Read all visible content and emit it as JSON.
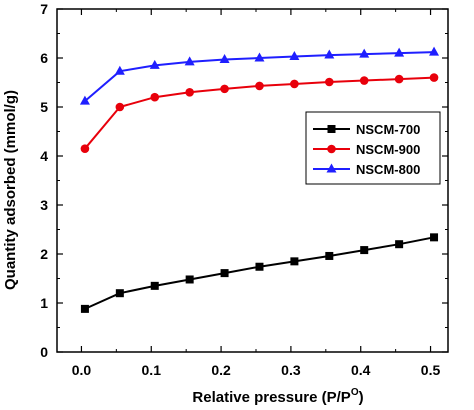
{
  "chart_data": {
    "type": "line",
    "title": "",
    "xlabel": "Relative pressure (P/P",
    "xlabel_sup": "O",
    "xlabel_close": ")",
    "ylabel": "Quantity adsorbed (mmol/g)",
    "xlim": [
      -0.035,
      0.525
    ],
    "ylim": [
      0,
      7
    ],
    "xticks": [
      "0.0",
      "0.1",
      "0.2",
      "0.3",
      "0.4",
      "0.5"
    ],
    "yticks": [
      "0",
      "1",
      "2",
      "3",
      "4",
      "5",
      "6",
      "7"
    ],
    "grid": false,
    "legend_position": "center-right",
    "series": [
      {
        "name": "NSCM-700",
        "color": "#000000",
        "marker": "square",
        "x": [
          0.005,
          0.055,
          0.105,
          0.155,
          0.205,
          0.255,
          0.305,
          0.355,
          0.405,
          0.455,
          0.505
        ],
        "y": [
          0.88,
          1.2,
          1.35,
          1.48,
          1.61,
          1.74,
          1.85,
          1.96,
          2.08,
          2.2,
          2.34
        ]
      },
      {
        "name": "NSCM-900",
        "color": "#e8000b",
        "marker": "circle",
        "x": [
          0.005,
          0.055,
          0.105,
          0.155,
          0.205,
          0.255,
          0.305,
          0.355,
          0.405,
          0.455,
          0.505
        ],
        "y": [
          4.15,
          5.0,
          5.2,
          5.3,
          5.37,
          5.43,
          5.47,
          5.51,
          5.54,
          5.57,
          5.6
        ]
      },
      {
        "name": "NSCM-800",
        "color": "#1f1fff",
        "marker": "triangle",
        "x": [
          0.005,
          0.055,
          0.105,
          0.155,
          0.205,
          0.255,
          0.305,
          0.355,
          0.405,
          0.455,
          0.505
        ],
        "y": [
          5.12,
          5.73,
          5.85,
          5.92,
          5.97,
          6.0,
          6.03,
          6.06,
          6.08,
          6.1,
          6.12
        ]
      }
    ]
  }
}
